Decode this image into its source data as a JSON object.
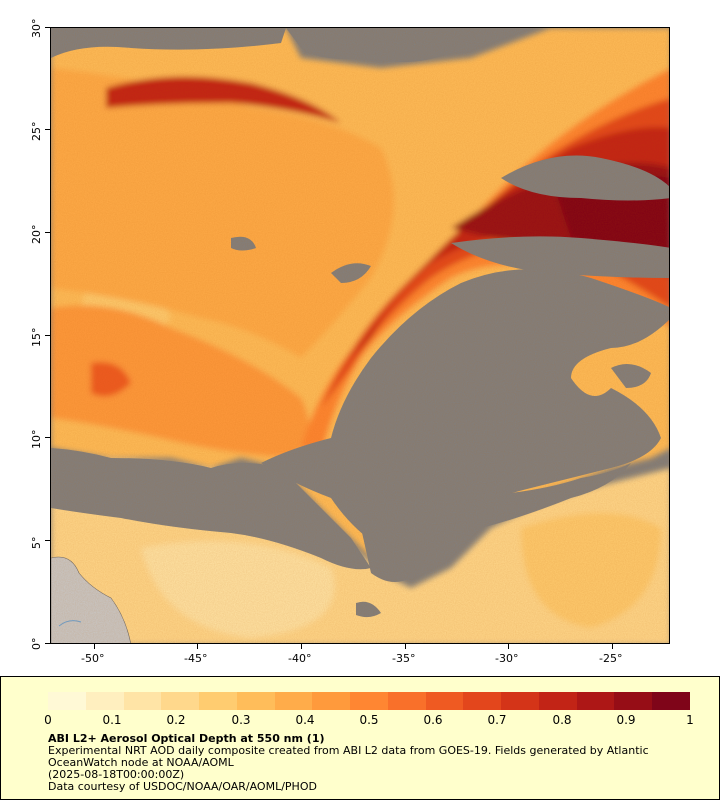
{
  "map": {
    "x_ticks": [
      "-50°",
      "-45°",
      "-40°",
      "-35°",
      "-30°",
      "-25°"
    ],
    "y_ticks": [
      "30°",
      "25°",
      "20°",
      "15°",
      "10°",
      "5°",
      "0°"
    ],
    "extent": {
      "lon_min": -52.2,
      "lon_max": -22.3,
      "lat_min": 0,
      "lat_max": 30
    },
    "no_data_color": "#808080",
    "land_color": "#c8c8c8"
  },
  "legend": {
    "colorbar_colors": [
      "#fff9d6",
      "#ffefbf",
      "#ffe4a6",
      "#ffd88c",
      "#ffcc70",
      "#ffbd5a",
      "#ffac4a",
      "#ff9a3c",
      "#ff8632",
      "#f9702a",
      "#ef5a22",
      "#e3461c",
      "#d43418",
      "#c22416",
      "#ad1716",
      "#960d16",
      "#7f0519"
    ],
    "colorbar_ticks": [
      "0",
      "0.1",
      "0.2",
      "0.3",
      "0.4",
      "0.5",
      "0.6",
      "0.7",
      "0.8",
      "0.9",
      "1"
    ],
    "title": "ABI L2+ Aerosol Optical Depth at 550 nm (1)",
    "description": "Experimental NRT AOD daily composite created from ABI L2 data from GOES-19. Fields generated by Atlantic OceanWatch node at NOAA/AOML",
    "date": "(2025-08-18T00:00:00Z)",
    "credit": "Data courtesy of USDOC/NOAA/OAR/AOML/PHOD"
  }
}
